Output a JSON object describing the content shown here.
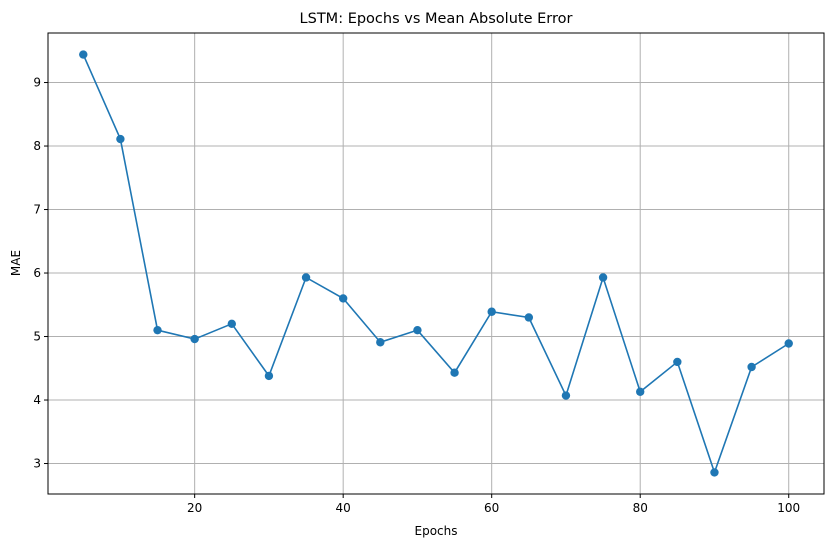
{
  "chart_data": {
    "type": "line",
    "title": "LSTM: Epochs vs Mean Absolute Error",
    "xlabel": "Epochs",
    "ylabel": "MAE",
    "xlim": [
      0.25,
      104.75
    ],
    "ylim": [
      2.52,
      9.78
    ],
    "xticks": [
      20,
      40,
      60,
      80,
      100
    ],
    "yticks": [
      3,
      4,
      5,
      6,
      7,
      8,
      9
    ],
    "grid": true,
    "legend": "none",
    "color": "#1f77b4",
    "marker": "circle",
    "x": [
      5,
      10,
      15,
      20,
      25,
      30,
      35,
      40,
      45,
      50,
      55,
      60,
      65,
      70,
      75,
      80,
      85,
      90,
      95,
      100
    ],
    "y": [
      9.44,
      8.11,
      5.1,
      4.96,
      5.2,
      4.38,
      5.93,
      5.6,
      4.91,
      5.1,
      4.43,
      5.39,
      5.3,
      4.07,
      5.93,
      4.13,
      4.6,
      2.86,
      4.52,
      4.89
    ]
  }
}
